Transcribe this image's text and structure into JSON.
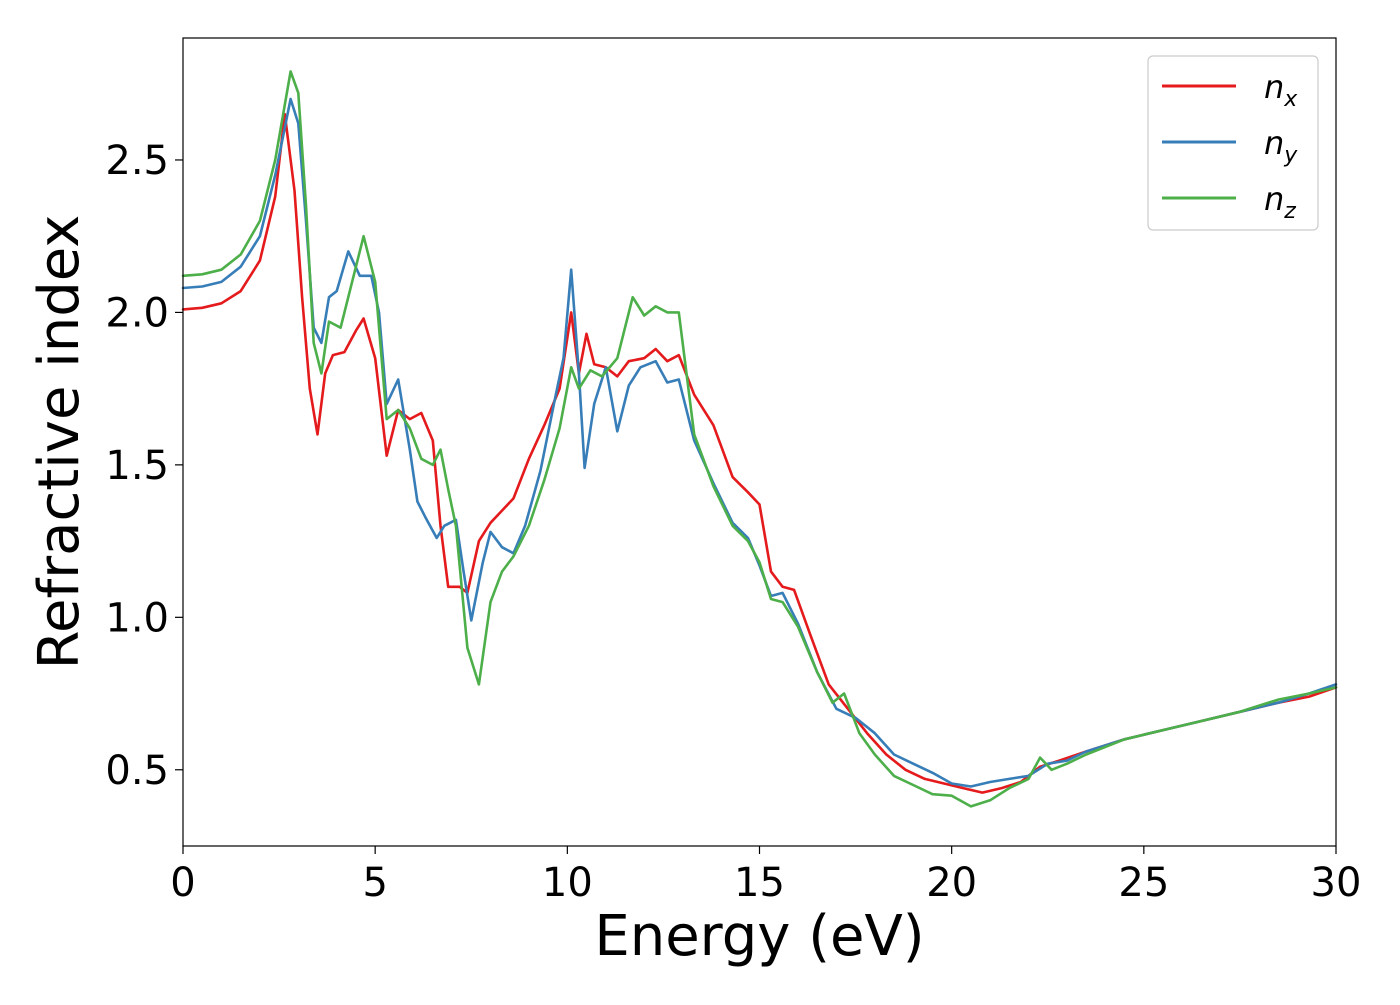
{
  "chart_data": {
    "type": "line",
    "xlabel": "Energy (eV)",
    "ylabel": "Refractive index",
    "xlim": [
      0,
      30
    ],
    "ylim": [
      0.25,
      2.9
    ],
    "xticks": [
      0,
      5,
      10,
      15,
      20,
      25,
      30
    ],
    "xtick_labels": [
      "0",
      "5",
      "10",
      "15",
      "20",
      "25",
      "30"
    ],
    "yticks": [
      0.5,
      1.0,
      1.5,
      2.0,
      2.5
    ],
    "ytick_labels": [
      "0.5",
      "1.0",
      "1.5",
      "2.0",
      "2.5"
    ],
    "grid": false,
    "legend_position": "top-right",
    "series": [
      {
        "name": "n",
        "subscript": "x",
        "color": "#e41a1c",
        "points": [
          [
            0,
            2.01
          ],
          [
            0.5,
            2.015
          ],
          [
            1,
            2.03
          ],
          [
            1.5,
            2.07
          ],
          [
            2,
            2.17
          ],
          [
            2.4,
            2.38
          ],
          [
            2.65,
            2.65
          ],
          [
            2.9,
            2.4
          ],
          [
            3.1,
            2.05
          ],
          [
            3.3,
            1.75
          ],
          [
            3.5,
            1.6
          ],
          [
            3.7,
            1.8
          ],
          [
            3.9,
            1.86
          ],
          [
            4.2,
            1.87
          ],
          [
            4.5,
            1.94
          ],
          [
            4.7,
            1.98
          ],
          [
            5.0,
            1.85
          ],
          [
            5.3,
            1.53
          ],
          [
            5.6,
            1.68
          ],
          [
            5.9,
            1.65
          ],
          [
            6.2,
            1.67
          ],
          [
            6.5,
            1.58
          ],
          [
            6.7,
            1.3
          ],
          [
            6.9,
            1.1
          ],
          [
            7.2,
            1.1
          ],
          [
            7.4,
            1.08
          ],
          [
            7.7,
            1.25
          ],
          [
            8.0,
            1.31
          ],
          [
            8.3,
            1.35
          ],
          [
            8.6,
            1.39
          ],
          [
            9.0,
            1.52
          ],
          [
            9.4,
            1.63
          ],
          [
            9.8,
            1.75
          ],
          [
            10.1,
            2.0
          ],
          [
            10.3,
            1.8
          ],
          [
            10.5,
            1.93
          ],
          [
            10.7,
            1.83
          ],
          [
            11.0,
            1.82
          ],
          [
            11.3,
            1.79
          ],
          [
            11.6,
            1.84
          ],
          [
            12.0,
            1.85
          ],
          [
            12.3,
            1.88
          ],
          [
            12.6,
            1.84
          ],
          [
            12.9,
            1.86
          ],
          [
            13.3,
            1.73
          ],
          [
            13.8,
            1.63
          ],
          [
            14.3,
            1.46
          ],
          [
            14.7,
            1.41
          ],
          [
            15.0,
            1.37
          ],
          [
            15.3,
            1.15
          ],
          [
            15.6,
            1.1
          ],
          [
            15.9,
            1.09
          ],
          [
            16.3,
            0.95
          ],
          [
            16.8,
            0.78
          ],
          [
            17.3,
            0.7
          ],
          [
            17.8,
            0.62
          ],
          [
            18.3,
            0.55
          ],
          [
            18.8,
            0.5
          ],
          [
            19.3,
            0.47
          ],
          [
            19.8,
            0.455
          ],
          [
            20.3,
            0.44
          ],
          [
            20.8,
            0.425
          ],
          [
            21.3,
            0.44
          ],
          [
            21.8,
            0.46
          ],
          [
            22.3,
            0.51
          ],
          [
            22.8,
            0.53
          ],
          [
            23.5,
            0.56
          ],
          [
            24.5,
            0.6
          ],
          [
            25.5,
            0.63
          ],
          [
            26.5,
            0.66
          ],
          [
            27.5,
            0.69
          ],
          [
            28.5,
            0.72
          ],
          [
            29.3,
            0.74
          ],
          [
            30,
            0.77
          ]
        ]
      },
      {
        "name": "n",
        "subscript": "y",
        "color": "#377eb8",
        "points": [
          [
            0,
            2.08
          ],
          [
            0.5,
            2.085
          ],
          [
            1,
            2.1
          ],
          [
            1.5,
            2.15
          ],
          [
            2,
            2.25
          ],
          [
            2.4,
            2.45
          ],
          [
            2.8,
            2.7
          ],
          [
            3.0,
            2.62
          ],
          [
            3.2,
            2.3
          ],
          [
            3.4,
            1.95
          ],
          [
            3.6,
            1.9
          ],
          [
            3.8,
            2.05
          ],
          [
            4.0,
            2.07
          ],
          [
            4.3,
            2.2
          ],
          [
            4.6,
            2.12
          ],
          [
            4.9,
            2.12
          ],
          [
            5.1,
            2.0
          ],
          [
            5.3,
            1.7
          ],
          [
            5.6,
            1.78
          ],
          [
            5.9,
            1.55
          ],
          [
            6.1,
            1.38
          ],
          [
            6.3,
            1.33
          ],
          [
            6.6,
            1.26
          ],
          [
            6.8,
            1.3
          ],
          [
            7.1,
            1.32
          ],
          [
            7.3,
            1.15
          ],
          [
            7.5,
            0.99
          ],
          [
            7.8,
            1.18
          ],
          [
            8.0,
            1.28
          ],
          [
            8.3,
            1.23
          ],
          [
            8.6,
            1.21
          ],
          [
            8.9,
            1.3
          ],
          [
            9.3,
            1.48
          ],
          [
            9.7,
            1.73
          ],
          [
            9.9,
            1.85
          ],
          [
            10.1,
            2.14
          ],
          [
            10.3,
            1.8
          ],
          [
            10.45,
            1.49
          ],
          [
            10.7,
            1.7
          ],
          [
            11.0,
            1.82
          ],
          [
            11.3,
            1.61
          ],
          [
            11.6,
            1.76
          ],
          [
            11.9,
            1.82
          ],
          [
            12.3,
            1.84
          ],
          [
            12.6,
            1.77
          ],
          [
            12.9,
            1.78
          ],
          [
            13.3,
            1.58
          ],
          [
            13.8,
            1.44
          ],
          [
            14.3,
            1.31
          ],
          [
            14.7,
            1.26
          ],
          [
            15.0,
            1.17
          ],
          [
            15.3,
            1.07
          ],
          [
            15.6,
            1.08
          ],
          [
            16.0,
            0.98
          ],
          [
            16.5,
            0.82
          ],
          [
            17.0,
            0.7
          ],
          [
            17.5,
            0.67
          ],
          [
            18.0,
            0.62
          ],
          [
            18.5,
            0.55
          ],
          [
            19.0,
            0.52
          ],
          [
            19.5,
            0.49
          ],
          [
            20.0,
            0.455
          ],
          [
            20.5,
            0.445
          ],
          [
            21.0,
            0.46
          ],
          [
            21.5,
            0.47
          ],
          [
            22.0,
            0.48
          ],
          [
            22.5,
            0.52
          ],
          [
            23.0,
            0.53
          ],
          [
            23.5,
            0.56
          ],
          [
            24.5,
            0.6
          ],
          [
            25.5,
            0.63
          ],
          [
            26.5,
            0.66
          ],
          [
            27.5,
            0.69
          ],
          [
            28.5,
            0.72
          ],
          [
            29.3,
            0.75
          ],
          [
            30,
            0.78
          ]
        ]
      },
      {
        "name": "n",
        "subscript": "z",
        "color": "#4daf4a",
        "points": [
          [
            0,
            2.12
          ],
          [
            0.5,
            2.125
          ],
          [
            1,
            2.14
          ],
          [
            1.5,
            2.19
          ],
          [
            2,
            2.3
          ],
          [
            2.4,
            2.5
          ],
          [
            2.8,
            2.79
          ],
          [
            3.0,
            2.72
          ],
          [
            3.2,
            2.35
          ],
          [
            3.4,
            1.9
          ],
          [
            3.6,
            1.8
          ],
          [
            3.8,
            1.97
          ],
          [
            4.1,
            1.95
          ],
          [
            4.4,
            2.1
          ],
          [
            4.7,
            2.25
          ],
          [
            5.0,
            2.1
          ],
          [
            5.3,
            1.65
          ],
          [
            5.6,
            1.68
          ],
          [
            5.9,
            1.62
          ],
          [
            6.2,
            1.52
          ],
          [
            6.5,
            1.5
          ],
          [
            6.7,
            1.55
          ],
          [
            6.9,
            1.42
          ],
          [
            7.1,
            1.3
          ],
          [
            7.4,
            0.9
          ],
          [
            7.7,
            0.78
          ],
          [
            8.0,
            1.05
          ],
          [
            8.3,
            1.15
          ],
          [
            8.6,
            1.2
          ],
          [
            9.0,
            1.3
          ],
          [
            9.4,
            1.45
          ],
          [
            9.8,
            1.62
          ],
          [
            10.1,
            1.82
          ],
          [
            10.3,
            1.75
          ],
          [
            10.6,
            1.81
          ],
          [
            10.9,
            1.79
          ],
          [
            11.3,
            1.85
          ],
          [
            11.7,
            2.05
          ],
          [
            12.0,
            1.99
          ],
          [
            12.3,
            2.02
          ],
          [
            12.6,
            2.0
          ],
          [
            12.9,
            2.0
          ],
          [
            13.3,
            1.6
          ],
          [
            13.8,
            1.43
          ],
          [
            14.3,
            1.3
          ],
          [
            14.7,
            1.25
          ],
          [
            15.0,
            1.18
          ],
          [
            15.3,
            1.06
          ],
          [
            15.6,
            1.05
          ],
          [
            16.0,
            0.97
          ],
          [
            16.5,
            0.82
          ],
          [
            16.9,
            0.72
          ],
          [
            17.2,
            0.75
          ],
          [
            17.6,
            0.62
          ],
          [
            18.0,
            0.55
          ],
          [
            18.5,
            0.48
          ],
          [
            19.0,
            0.45
          ],
          [
            19.5,
            0.42
          ],
          [
            20.0,
            0.415
          ],
          [
            20.5,
            0.38
          ],
          [
            21.0,
            0.4
          ],
          [
            21.5,
            0.44
          ],
          [
            22.0,
            0.47
          ],
          [
            22.3,
            0.54
          ],
          [
            22.6,
            0.5
          ],
          [
            23.0,
            0.52
          ],
          [
            23.5,
            0.55
          ],
          [
            24.5,
            0.6
          ],
          [
            25.5,
            0.63
          ],
          [
            26.5,
            0.66
          ],
          [
            27.5,
            0.69
          ],
          [
            28.5,
            0.73
          ],
          [
            29.3,
            0.75
          ],
          [
            30,
            0.77
          ]
        ]
      }
    ]
  }
}
